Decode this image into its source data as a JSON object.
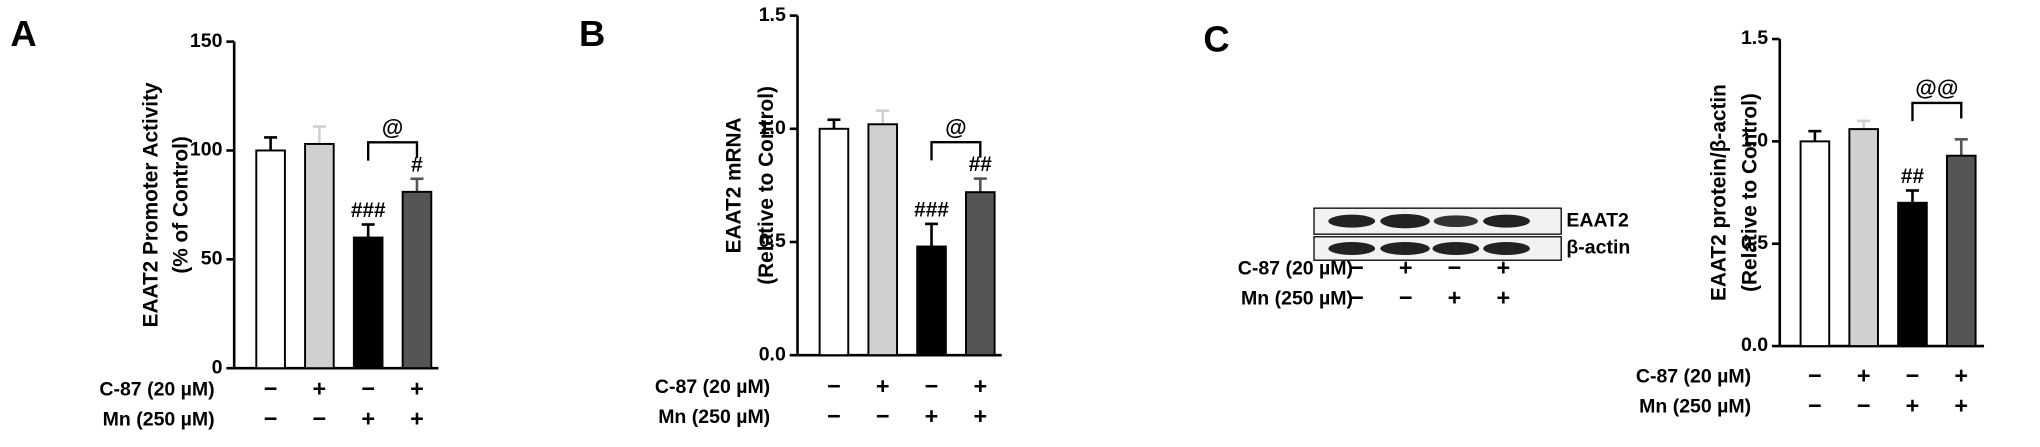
{
  "figure": {
    "panel_labels": [
      "A",
      "B",
      "C"
    ]
  },
  "chart_data": [
    {
      "type": "bar",
      "ylabel": [
        "EAAT2 Promoter Activity",
        "(% of Control)"
      ],
      "values": [
        100,
        103,
        60,
        81
      ],
      "errors": [
        6,
        8,
        6,
        6
      ],
      "colors": [
        "#ffffff",
        "#d0d0d0",
        "#000000",
        "#555555"
      ],
      "ylim": [
        0,
        150
      ],
      "yticks": [
        0,
        50,
        100,
        150
      ],
      "bar_labels": [
        null,
        null,
        "###",
        "#"
      ],
      "bracket_label": "@",
      "treatments": [
        {
          "label": "C-87 (20 µM)",
          "signs": [
            "−",
            "+",
            "−",
            "+"
          ]
        },
        {
          "label": "Mn (250 µM)",
          "signs": [
            "−",
            "−",
            "+",
            "+"
          ]
        }
      ]
    },
    {
      "type": "bar",
      "ylabel": [
        "EAAT2 mRNA",
        "(Relative to Control)"
      ],
      "values": [
        1.0,
        1.02,
        0.48,
        0.72
      ],
      "errors": [
        0.04,
        0.06,
        0.1,
        0.06
      ],
      "colors": [
        "#ffffff",
        "#d0d0d0",
        "#000000",
        "#555555"
      ],
      "ylim": [
        0,
        1.5
      ],
      "yticks": [
        {
          "value": 0,
          "label": "0.0"
        },
        0.5,
        {
          "value": 1,
          "label": "1.0"
        },
        1.5
      ],
      "bar_labels": [
        null,
        null,
        "###",
        "##"
      ],
      "bracket_label": "@",
      "treatments": [
        {
          "label": "C-87 (20 µM)",
          "signs": [
            "−",
            "+",
            "−",
            "+"
          ]
        },
        {
          "label": "Mn (250 µM)",
          "signs": [
            "−",
            "−",
            "+",
            "+"
          ]
        }
      ]
    },
    {
      "type": "bar",
      "ylabel": [
        "EAAT2 protein/β-actin",
        "(Relative to Control)"
      ],
      "values": [
        1.0,
        1.06,
        0.7,
        0.93
      ],
      "errors": [
        0.05,
        0.04,
        0.06,
        0.08
      ],
      "colors": [
        "#ffffff",
        "#d0d0d0",
        "#000000",
        "#555555"
      ],
      "ylim": [
        0,
        1.5
      ],
      "yticks": [
        {
          "value": 0,
          "label": "0.0"
        },
        0.5,
        {
          "value": 1,
          "label": "1.0"
        },
        1.5
      ],
      "bar_labels": [
        null,
        null,
        "##",
        null
      ],
      "bracket_label": "@@",
      "treatments": [
        {
          "label": "C-87 (20 µM)",
          "signs": [
            "−",
            "+",
            "−",
            "+"
          ]
        },
        {
          "label": "Mn (250 µM)",
          "signs": [
            "−",
            "−",
            "+",
            "+"
          ]
        }
      ]
    }
  ],
  "blot": {
    "bands": [
      "EAAT2",
      "β-actin"
    ],
    "treatments": [
      {
        "label": "C-87 (20 µM)",
        "signs": [
          "−",
          "+",
          "−",
          "+"
        ]
      },
      {
        "label": "Mn (250 µM)",
        "signs": [
          "−",
          "−",
          "+",
          "+"
        ]
      }
    ]
  }
}
